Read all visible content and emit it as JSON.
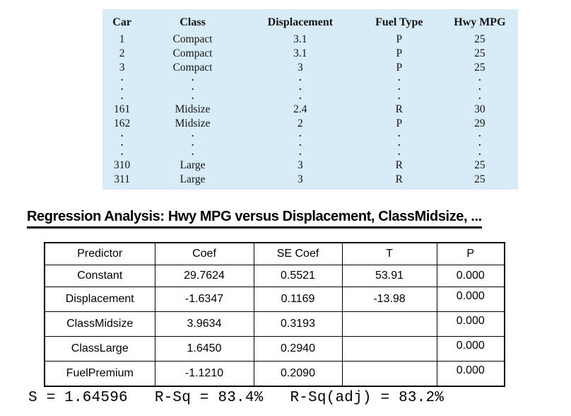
{
  "car_table": {
    "background_color": "#d7ecf6",
    "headers": [
      "Car",
      "Class",
      "Displacement",
      "Fuel Type",
      "Hwy MPG"
    ],
    "ellipsis_char": ".",
    "rows": [
      {
        "type": "data",
        "cells": [
          "1",
          "Compact",
          "3.1",
          "P",
          "25"
        ]
      },
      {
        "type": "data",
        "cells": [
          "2",
          "Compact",
          "3.1",
          "P",
          "25"
        ]
      },
      {
        "type": "data",
        "cells": [
          "3",
          "Compact",
          "3",
          "P",
          "25"
        ]
      },
      {
        "type": "dots"
      },
      {
        "type": "dots"
      },
      {
        "type": "dots"
      },
      {
        "type": "data",
        "cells": [
          "161",
          "Midsize",
          "2.4",
          "R",
          "30"
        ]
      },
      {
        "type": "data",
        "cells": [
          "162",
          "Midsize",
          "2",
          "P",
          "29"
        ]
      },
      {
        "type": "dots"
      },
      {
        "type": "dots"
      },
      {
        "type": "dots"
      },
      {
        "type": "data",
        "cells": [
          "310",
          "Large",
          "3",
          "R",
          "25"
        ]
      },
      {
        "type": "data",
        "cells": [
          "311",
          "Large",
          "3",
          "R",
          "25"
        ]
      }
    ]
  },
  "heading": {
    "text": "Regression Analysis: Hwy MPG versus Displacement, ClassMidsize, ..."
  },
  "regression_table": {
    "headers": [
      "Predictor",
      "Coef",
      "SE Coef",
      "T",
      "P"
    ],
    "rows": [
      {
        "cells": [
          "Constant",
          "29.7624",
          "0.5521",
          "53.91",
          "0.000"
        ],
        "p_raised": false
      },
      {
        "cells": [
          "Displacement",
          "-1.6347",
          "0.1169",
          "-13.98",
          "0.000"
        ],
        "p_raised": true
      },
      {
        "cells": [
          "ClassMidsize",
          "3.9634",
          "0.3193",
          "",
          "0.000"
        ],
        "p_raised": true
      },
      {
        "cells": [
          "ClassLarge",
          "1.6450",
          "0.2940",
          "",
          "0.000"
        ],
        "p_raised": true
      },
      {
        "cells": [
          "FuelPremium",
          "-1.1210",
          "0.2090",
          "",
          "0.000"
        ],
        "p_raised": true
      }
    ]
  },
  "stats_line": {
    "s": "S = 1.64596",
    "r_sq": "R-Sq = 83.4%",
    "r_sq_adj": "R-Sq(adj) = 83.2%"
  }
}
